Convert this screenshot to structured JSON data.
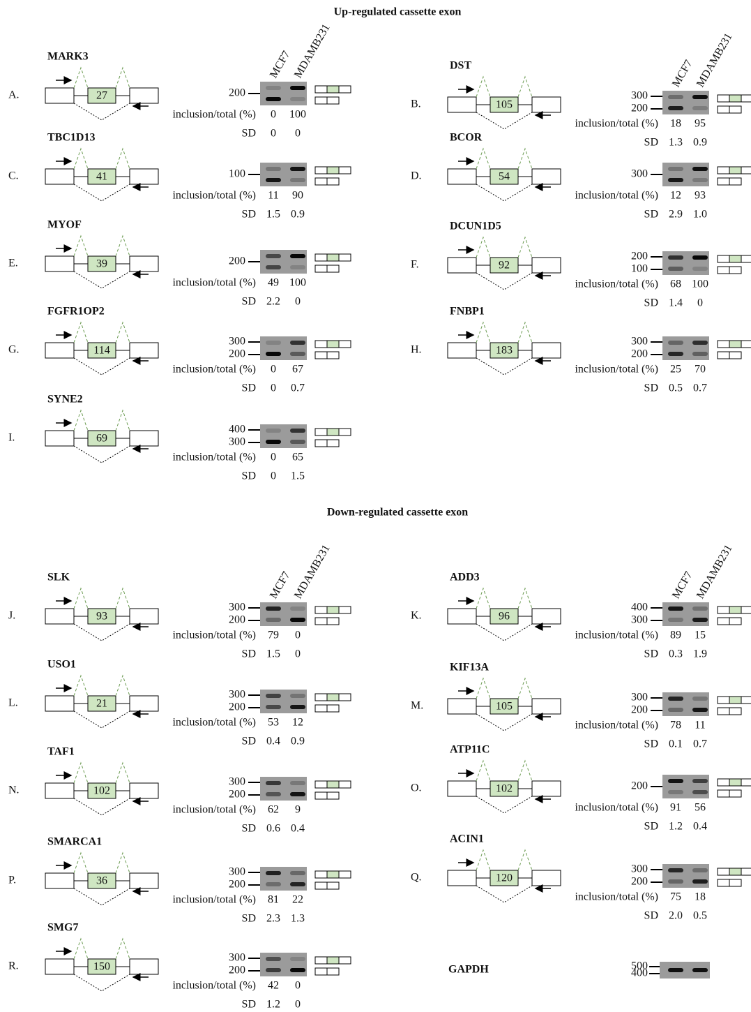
{
  "lanes": [
    "MCF7",
    "MDAMB231"
  ],
  "row_labels": {
    "inclusion": "inclusion/total (%)",
    "sd": "SD"
  },
  "sections": [
    {
      "title": "Up-regulated cassette exon",
      "columns": [
        [
          {
            "letter": "A.",
            "gene": "MARK3",
            "exon": "27",
            "markers": [
              "200"
            ],
            "inclusion": [
              "0",
              "100"
            ],
            "sd": [
              "0",
              "0"
            ]
          },
          {
            "letter": "C.",
            "gene": "TBC1D13",
            "exon": "41",
            "markers": [
              "100"
            ],
            "inclusion": [
              "11",
              "90"
            ],
            "sd": [
              "1.5",
              "0.9"
            ]
          },
          {
            "letter": "E.",
            "gene": "MYOF",
            "exon": "39",
            "markers": [
              "200"
            ],
            "inclusion": [
              "49",
              "100"
            ],
            "sd": [
              "2.2",
              "0"
            ]
          },
          {
            "letter": "G.",
            "gene": "FGFR1OP2",
            "exon": "114",
            "markers": [
              "300",
              "200"
            ],
            "inclusion": [
              "0",
              "67"
            ],
            "sd": [
              "0",
              "0.7"
            ]
          },
          {
            "letter": "I.",
            "gene": "SYNE2",
            "exon": "69",
            "markers": [
              "400",
              "300"
            ],
            "inclusion": [
              "0",
              "65"
            ],
            "sd": [
              "0",
              "1.5"
            ]
          }
        ],
        [
          {
            "letter": "B.",
            "gene": "DST",
            "exon": "105",
            "markers": [
              "300",
              "200"
            ],
            "inclusion": [
              "18",
              "95"
            ],
            "sd": [
              "1.3",
              "0.9"
            ]
          },
          {
            "letter": "D.",
            "gene": "BCOR",
            "exon": "54",
            "markers": [
              "300"
            ],
            "inclusion": [
              "12",
              "93"
            ],
            "sd": [
              "2.9",
              "1.0"
            ]
          },
          {
            "letter": "F.",
            "gene": "DCUN1D5",
            "exon": "92",
            "markers": [
              "200",
              "100"
            ],
            "inclusion": [
              "68",
              "100"
            ],
            "sd": [
              "1.4",
              "0"
            ]
          },
          {
            "letter": "H.",
            "gene": "FNBP1",
            "exon": "183",
            "markers": [
              "300",
              "200"
            ],
            "inclusion": [
              "25",
              "70"
            ],
            "sd": [
              "0.5",
              "0.7"
            ]
          }
        ]
      ]
    },
    {
      "title": "Down-regulated cassette exon",
      "columns": [
        [
          {
            "letter": "J.",
            "gene": "SLK",
            "exon": "93",
            "markers": [
              "300",
              "200"
            ],
            "inclusion": [
              "79",
              "0"
            ],
            "sd": [
              "1.5",
              "0"
            ]
          },
          {
            "letter": "L.",
            "gene": "USO1",
            "exon": "21",
            "markers": [
              "300",
              "200"
            ],
            "inclusion": [
              "53",
              "12"
            ],
            "sd": [
              "0.4",
              "0.9"
            ]
          },
          {
            "letter": "N.",
            "gene": "TAF1",
            "exon": "102",
            "markers": [
              "300",
              "200"
            ],
            "inclusion": [
              "62",
              "9"
            ],
            "sd": [
              "0.6",
              "0.4"
            ]
          },
          {
            "letter": "P.",
            "gene": "SMARCA1",
            "exon": "36",
            "markers": [
              "300",
              "200"
            ],
            "inclusion": [
              "81",
              "22"
            ],
            "sd": [
              "2.3",
              "1.3"
            ]
          },
          {
            "letter": "R.",
            "gene": "SMG7",
            "exon": "150",
            "markers": [
              "300",
              "200"
            ],
            "inclusion": [
              "42",
              "0"
            ],
            "sd": [
              "1.2",
              "0"
            ]
          }
        ],
        [
          {
            "letter": "K.",
            "gene": "ADD3",
            "exon": "96",
            "markers": [
              "400",
              "300"
            ],
            "inclusion": [
              "89",
              "15"
            ],
            "sd": [
              "0.3",
              "1.9"
            ]
          },
          {
            "letter": "M.",
            "gene": "KIF13A",
            "exon": "105",
            "markers": [
              "300",
              "200"
            ],
            "inclusion": [
              "78",
              "11"
            ],
            "sd": [
              "0.1",
              "0.7"
            ]
          },
          {
            "letter": "O.",
            "gene": "ATP11C",
            "exon": "102",
            "markers": [
              "200"
            ],
            "inclusion": [
              "91",
              "56"
            ],
            "sd": [
              "1.2",
              "0.4"
            ]
          },
          {
            "letter": "Q.",
            "gene": "ACIN1",
            "exon": "120",
            "markers": [
              "300",
              "200"
            ],
            "inclusion": [
              "75",
              "18"
            ],
            "sd": [
              "2.0",
              "0.5"
            ]
          }
        ]
      ]
    }
  ],
  "gapdh": {
    "gene": "GAPDH",
    "markers": [
      "500",
      "400"
    ]
  }
}
